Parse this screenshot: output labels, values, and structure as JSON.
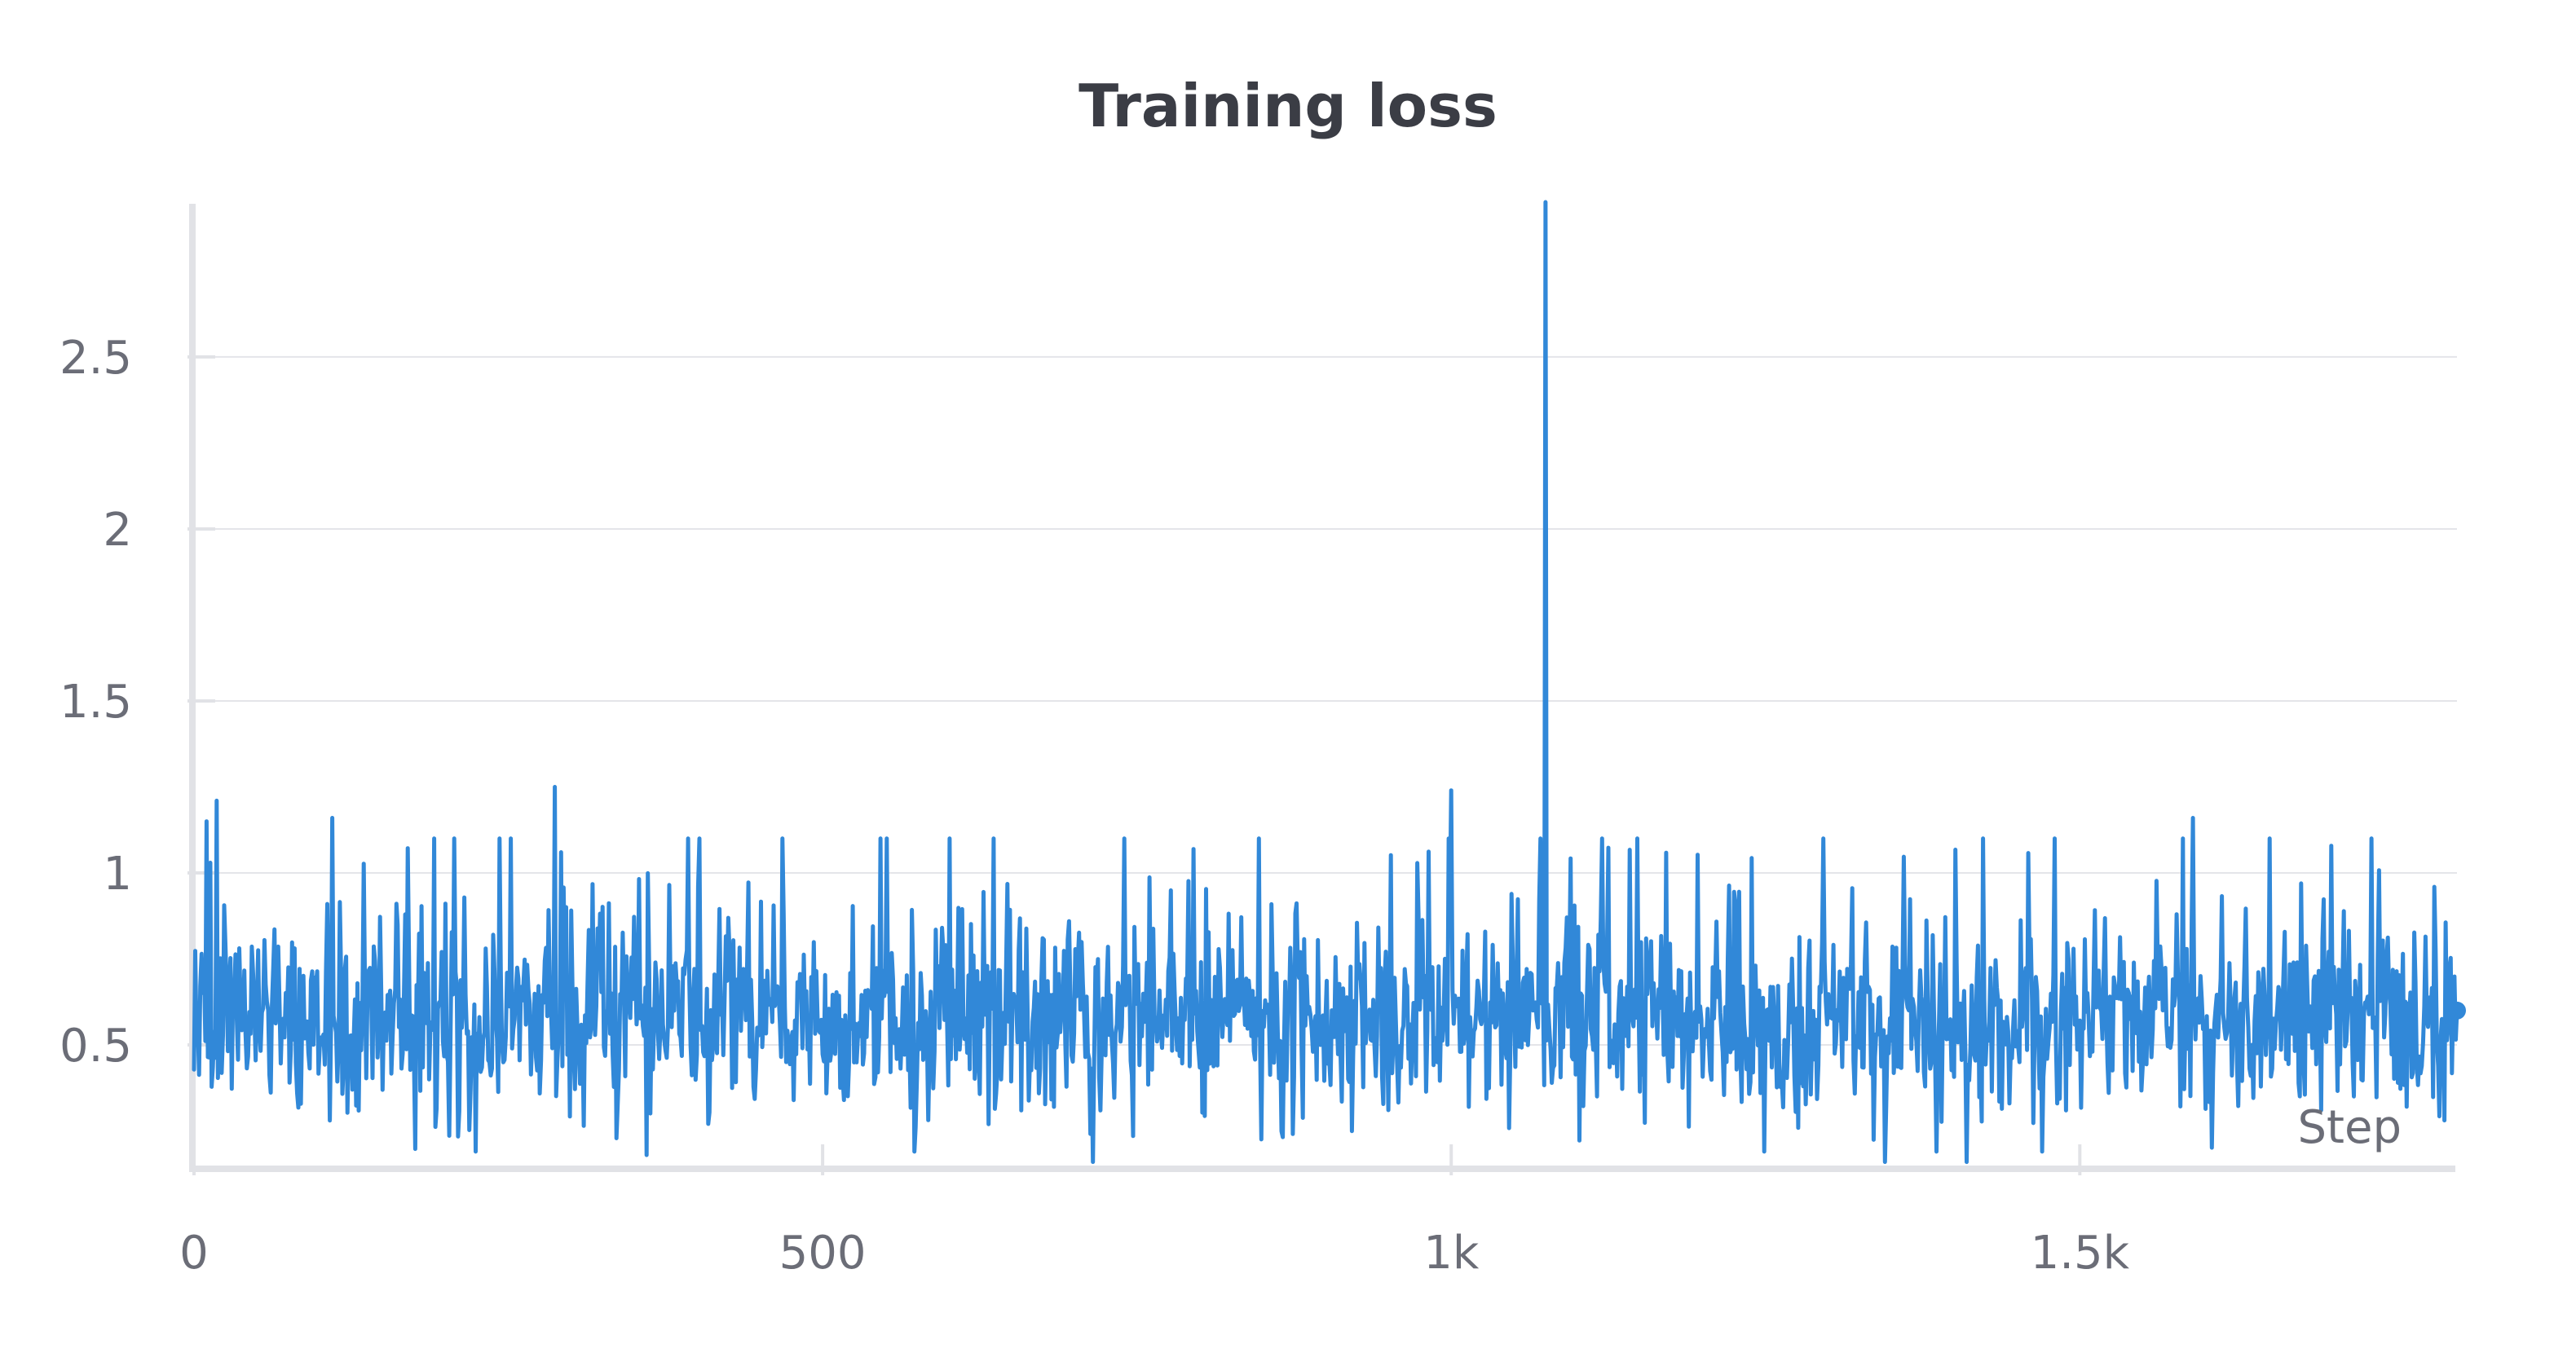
{
  "chart_data": {
    "type": "line",
    "title": "Training loss",
    "xlabel": "Step",
    "ylabel": "",
    "xlim": [
      0,
      1800
    ],
    "ylim": [
      0.14,
      2.95
    ],
    "x_ticks": [
      {
        "value": 0,
        "label": "0"
      },
      {
        "value": 500,
        "label": "500"
      },
      {
        "value": 1000,
        "label": "1k"
      },
      {
        "value": 1500,
        "label": "1.5k"
      }
    ],
    "y_ticks": [
      {
        "value": 0.5,
        "label": "0.5"
      },
      {
        "value": 1,
        "label": "1"
      },
      {
        "value": 1.5,
        "label": "1.5"
      },
      {
        "value": 2,
        "label": "2"
      },
      {
        "value": 2.5,
        "label": "2.5"
      }
    ],
    "grid": "horizontal",
    "legend": "none",
    "series": [
      {
        "color": "#3188d8",
        "summary": {
          "baseline_mean": 0.58,
          "typical_range": [
            0.25,
            1.05
          ],
          "min": 0.15,
          "final_value": 0.6,
          "final_step": 1800
        },
        "notable_points": [
          {
            "x": 10,
            "y": 1.15
          },
          {
            "x": 18,
            "y": 1.21
          },
          {
            "x": 110,
            "y": 1.16
          },
          {
            "x": 287,
            "y": 1.25
          },
          {
            "x": 360,
            "y": 0.18
          },
          {
            "x": 715,
            "y": 0.16
          },
          {
            "x": 1000,
            "y": 1.24
          },
          {
            "x": 1075,
            "y": 2.95
          },
          {
            "x": 1345,
            "y": 0.16
          },
          {
            "x": 1410,
            "y": 0.16
          },
          {
            "x": 1590,
            "y": 1.16
          },
          {
            "x": 1800,
            "y": 0.6
          }
        ]
      }
    ]
  }
}
